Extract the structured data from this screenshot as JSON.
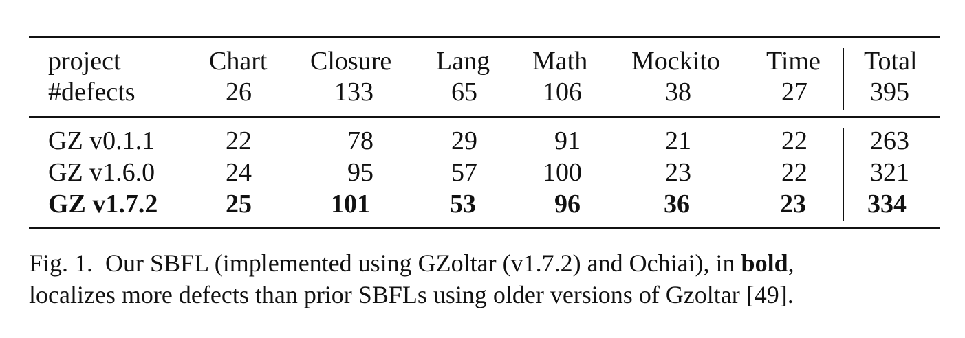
{
  "table": {
    "header": {
      "project_label": "project",
      "defects_label": "#defects",
      "columns": [
        {
          "name": "Chart",
          "defects": "26"
        },
        {
          "name": "Closure",
          "defects": "133"
        },
        {
          "name": "Lang",
          "defects": "65"
        },
        {
          "name": "Math",
          "defects": "106"
        },
        {
          "name": "Mockito",
          "defects": "38"
        },
        {
          "name": "Time",
          "defects": "27"
        },
        {
          "name": "Total",
          "defects": "395"
        }
      ]
    },
    "rows": [
      {
        "label": "GZ v0.1.1",
        "values": [
          "22",
          "78",
          "29",
          "91",
          "21",
          "22",
          "263"
        ],
        "bold": false
      },
      {
        "label": "GZ v1.6.0",
        "values": [
          "24",
          "95",
          "57",
          "100",
          "23",
          "22",
          "321"
        ],
        "bold": false
      },
      {
        "label": "GZ v1.7.2",
        "values": [
          "25",
          "101",
          "53",
          "96",
          "36",
          "23",
          "334"
        ],
        "bold": true
      }
    ]
  },
  "caption": {
    "fig_label": "Fig. 1.",
    "line1_before_bold": "Our SBFL (implemented using GZoltar (v1.7.2) and Ochiai), in ",
    "bold_word": "bold",
    "line1_after_bold": ",",
    "line2": "localizes more defects than prior SBFLs using older versions of Gzoltar [49]."
  }
}
